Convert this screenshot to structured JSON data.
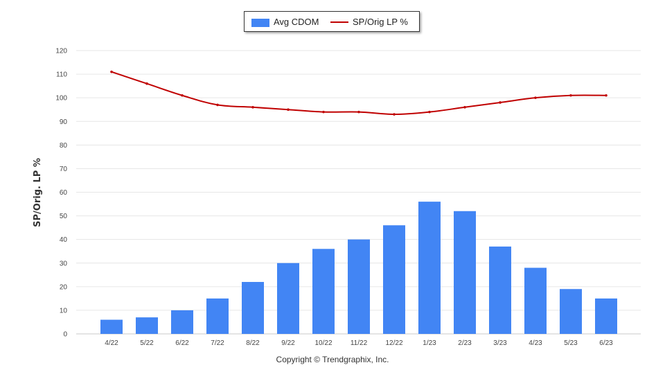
{
  "chart_data": {
    "type": "bar",
    "categories": [
      "4/22",
      "5/22",
      "6/22",
      "7/22",
      "8/22",
      "9/22",
      "10/22",
      "11/22",
      "12/22",
      "1/23",
      "2/23",
      "3/23",
      "4/23",
      "5/23",
      "6/23"
    ],
    "series": [
      {
        "name": "Avg CDOM",
        "type": "bar",
        "color": "#4285f4",
        "values": [
          6,
          7,
          10,
          15,
          22,
          30,
          36,
          40,
          46,
          56,
          52,
          37,
          28,
          19,
          15
        ]
      },
      {
        "name": "SP/Orig LP %",
        "type": "line",
        "color": "#c00000",
        "values": [
          111,
          106,
          101,
          97,
          96,
          95,
          94,
          94,
          93,
          94,
          96,
          98,
          100,
          101,
          101
        ]
      }
    ],
    "ylabel": "SP/Orig. LP %",
    "ylim": [
      0,
      120
    ],
    "yticks": [
      0,
      10,
      20,
      30,
      40,
      50,
      60,
      70,
      80,
      90,
      100,
      110,
      120
    ],
    "grid": true,
    "legend_position": "top-center"
  },
  "legend": {
    "bar_label": "Avg CDOM",
    "line_label": "SP/Orig LP %"
  },
  "footer": {
    "copyright": "Copyright © Trendgraphix, Inc."
  }
}
